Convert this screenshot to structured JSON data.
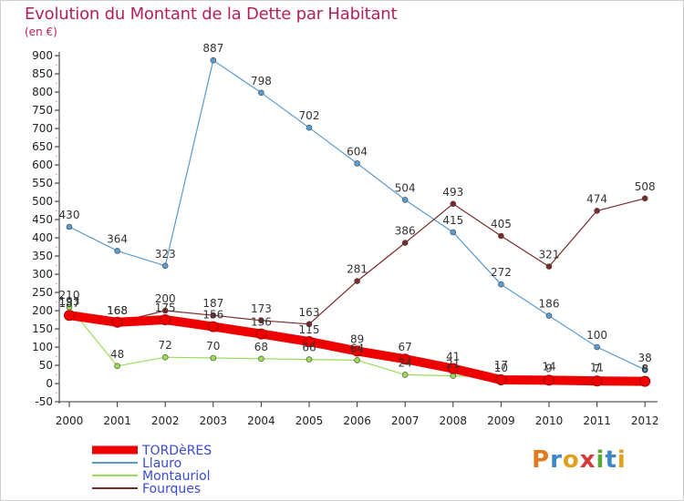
{
  "title": "Evolution du Montant de la Dette par Habitant",
  "unit": "(en €)",
  "logo": [
    "P",
    "r",
    "o",
    "x",
    "i",
    "t",
    "i"
  ],
  "chart_data": {
    "type": "line",
    "title": "Evolution du Montant de la Dette par Habitant",
    "ylabel": "(en €)",
    "x": [
      "2000",
      "2001",
      "2002",
      "2003",
      "2004",
      "2005",
      "2006",
      "2007",
      "2008",
      "2009",
      "2010",
      "2011",
      "2012"
    ],
    "y_ticks": [
      -50,
      0,
      50,
      100,
      150,
      200,
      250,
      300,
      350,
      400,
      450,
      500,
      550,
      600,
      650,
      700,
      750,
      800,
      850,
      900
    ],
    "ylim": [
      -50,
      900
    ],
    "grid": false,
    "legend_position": "bottom-left",
    "series": [
      {
        "name": "TORDèRES",
        "color": "#ee0000",
        "values": [
          187,
          168,
          175,
          156,
          136,
          115,
          89,
          67,
          41,
          10,
          9,
          7,
          6
        ]
      },
      {
        "name": "Llauro",
        "color": "#5a9bd0",
        "values": [
          430,
          364,
          323,
          887,
          798,
          702,
          604,
          504,
          415,
          272,
          186,
          100,
          38
        ]
      },
      {
        "name": "Montauriol",
        "color": "#99dd55",
        "values": [
          210,
          48,
          72,
          70,
          68,
          66,
          64,
          24,
          21,
          17,
          14,
          11,
          8
        ]
      },
      {
        "name": "Fourques",
        "color": "#7b2a2a",
        "values": [
          193,
          168,
          200,
          187,
          173,
          163,
          281,
          386,
          493,
          405,
          321,
          474,
          508
        ]
      }
    ],
    "data_labels": [
      {
        "series": 0,
        "labels": [
          "187",
          "168",
          "175",
          "156",
          "136",
          "115",
          "89",
          "67",
          "41",
          "10",
          "9",
          "7",
          "6"
        ]
      },
      {
        "series": 1,
        "labels": [
          "430",
          "364",
          "323",
          "887",
          "798",
          "702",
          "604",
          "504",
          "415",
          "272",
          "186",
          "100",
          "38"
        ]
      },
      {
        "series": 2,
        "labels": [
          "210",
          "48",
          "72",
          "70",
          "68",
          "66",
          "64",
          "24",
          "21",
          "17",
          "14",
          "11",
          "8"
        ]
      },
      {
        "series": 3,
        "labels": [
          "193",
          "168",
          "200",
          "187",
          "173",
          "163",
          "281",
          "386",
          "493",
          "405",
          "321",
          "474",
          "508"
        ]
      }
    ]
  }
}
